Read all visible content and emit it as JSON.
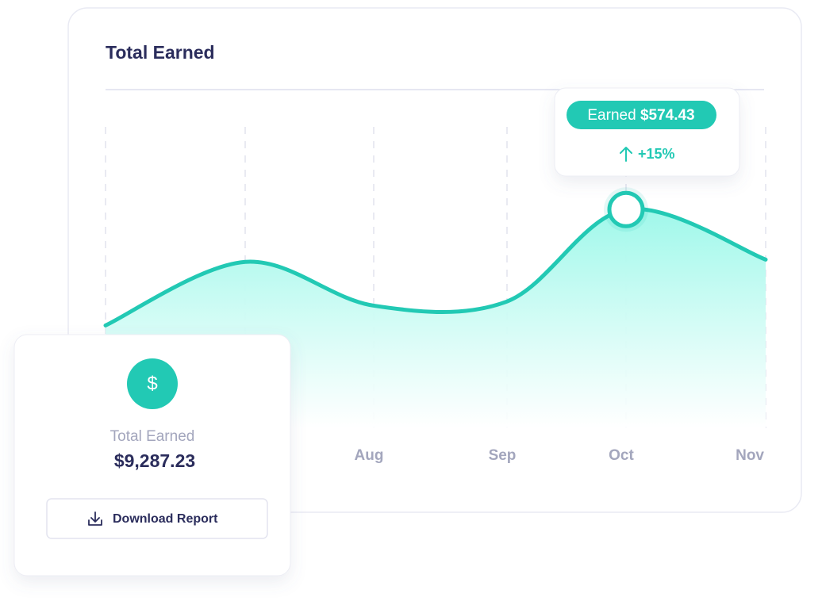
{
  "chart_data": {
    "type": "line",
    "title": "Total Earned",
    "categories": [
      null,
      null,
      "Aug",
      "Sep",
      "Oct",
      "Nov"
    ],
    "series": [
      {
        "color": "#22c9b4",
        "values": [
          270,
          437,
          322,
          333,
          574.43,
          443
        ],
        "value_labels": [
          null,
          null,
          null,
          null,
          "$574.43",
          null
        ]
      }
    ],
    "ylim": [
      0,
      600
    ],
    "grid": true,
    "tooltip_label": "Earned",
    "tooltip_change": "+15%"
  },
  "summary": {
    "icon": "$",
    "title": "Total Earned",
    "value": "$9,287.23",
    "button": "Download Report"
  }
}
